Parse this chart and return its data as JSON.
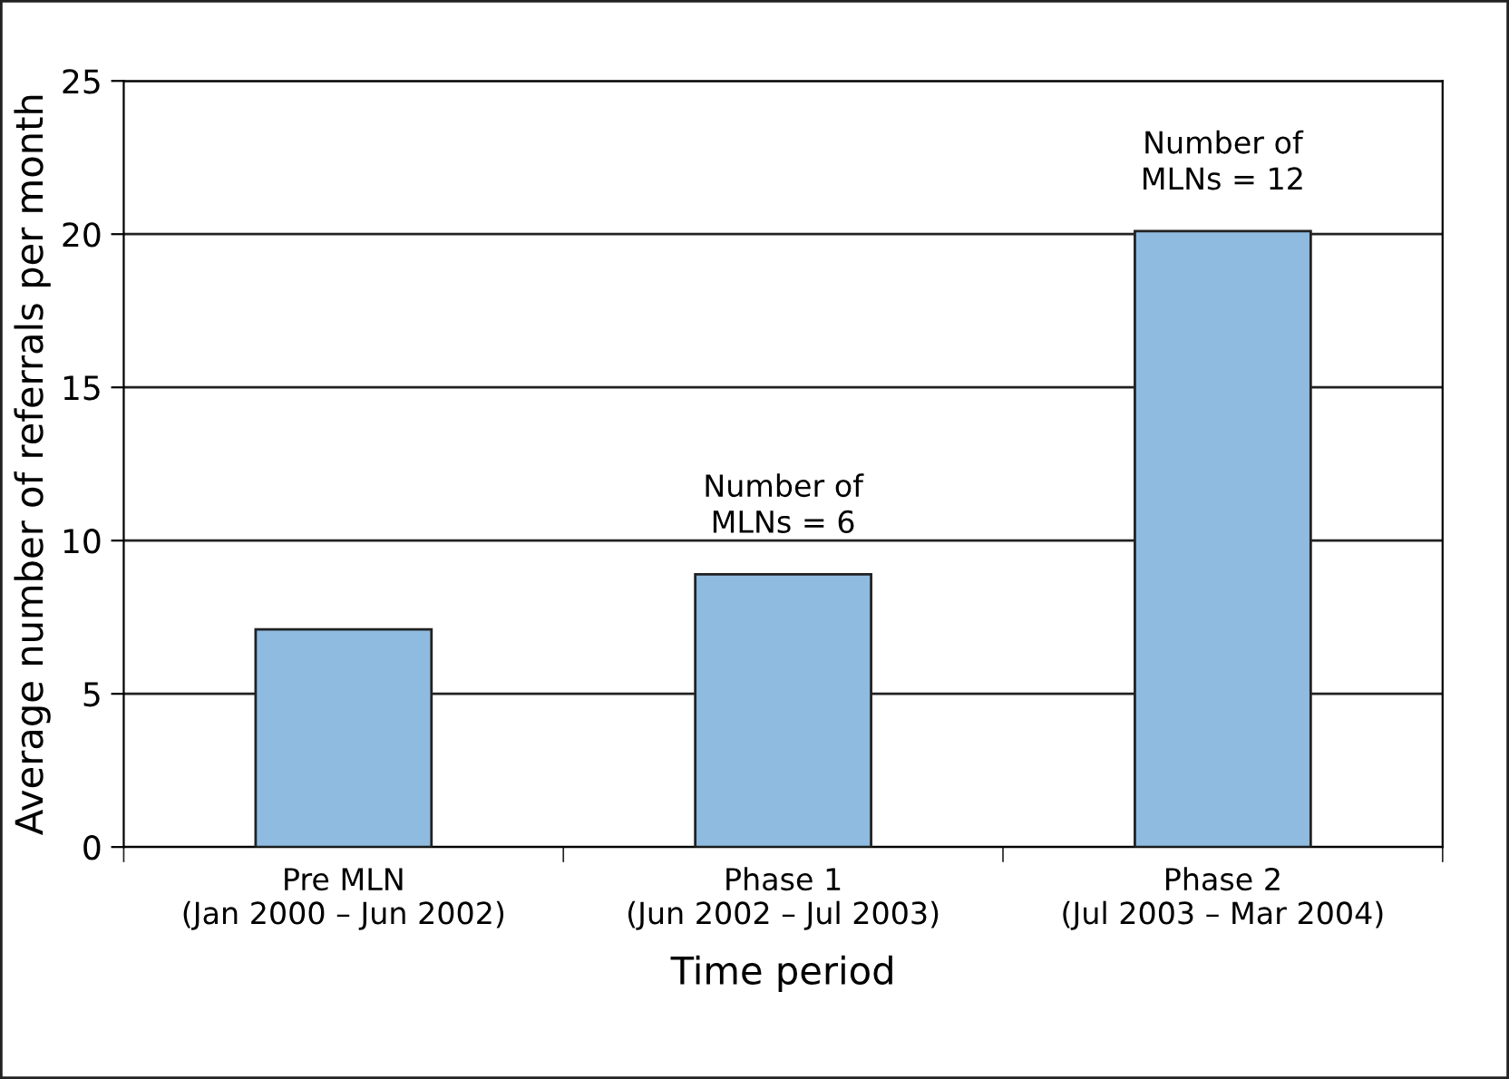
{
  "chart_data": {
    "type": "bar",
    "xlabel": "Time period",
    "ylabel": "Average number of referrals per month",
    "categories": [
      "Pre MLN\n(Jan 2000 – Jun 2002)",
      "Phase 1\n(Jun 2002 – Jul 2003)",
      "Phase 2\n(Jul 2003 – Mar 2004)"
    ],
    "values": [
      7.1,
      8.9,
      20.1
    ],
    "color": "#8fbbe1",
    "ylim": [
      0,
      25
    ],
    "yticks": [
      0,
      5,
      10,
      15,
      20,
      25
    ],
    "grid": "y",
    "legend": false,
    "annotations": [
      {
        "text": "Number of\nMLNs = 6",
        "x": "Phase 1\n(Jun 2002 – Jul 2003)",
        "y": 8.9
      },
      {
        "text": "Number of\nMLNs = 12",
        "x": "Phase 2\n(Jul 2003 – Mar 2004)",
        "y": 20.1
      }
    ]
  }
}
